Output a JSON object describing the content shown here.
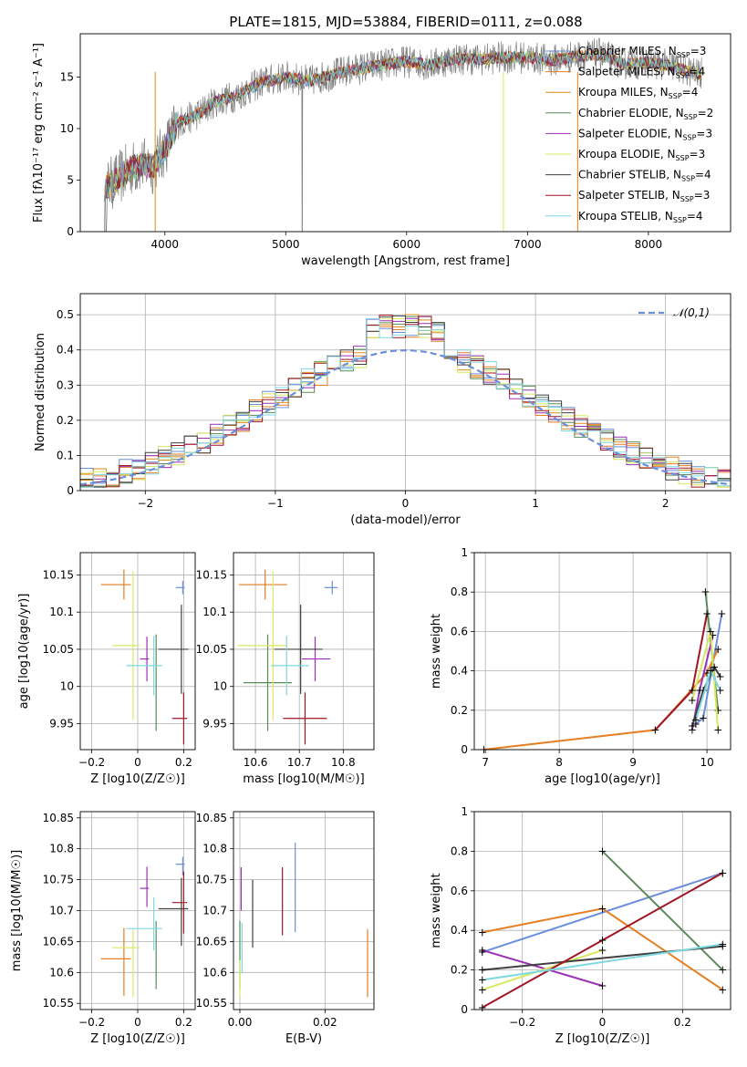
{
  "chart_data": [
    {
      "id": "spectrum",
      "type": "line",
      "title": "PLATE=1815, MJD=53884, FIBERID=0111, z=0.088",
      "xlabel": "wavelength [Angstrom, rest frame]",
      "ylabel": "Flux [f_λ 10^-17 erg cm^-2 s^-1 A^-1]",
      "xlim": [
        3300,
        8680
      ],
      "ylim": [
        0,
        19.2
      ],
      "xticks": [
        4000,
        5000,
        6000,
        7000,
        8000
      ],
      "yticks": [
        0,
        5,
        10,
        15
      ],
      "grid": false,
      "legend_position": "top-right",
      "data_envelope": {
        "x": [
          3500,
          3600,
          3700,
          3800,
          3900,
          4000,
          4100,
          4200,
          4300,
          4400,
          4600,
          4800,
          5000,
          5200,
          5400,
          5600,
          5800,
          6000,
          6200,
          6400,
          6600,
          6800,
          7000,
          7200,
          7400,
          7600,
          7800,
          8000,
          8200,
          8400
        ],
        "y": [
          4.2,
          5.0,
          6.0,
          6.5,
          6.3,
          8.0,
          10.5,
          11.0,
          11.6,
          12.5,
          13.2,
          14.5,
          15.0,
          14.6,
          15.3,
          15.8,
          16.2,
          16.5,
          16.2,
          16.8,
          16.7,
          16.9,
          16.9,
          16.6,
          17.0,
          17.2,
          16.3,
          16.4,
          16.1,
          15.3
        ]
      },
      "series": [
        {
          "name": "Chabrier MILES, N_SSP=3",
          "color": "#6a8fdc"
        },
        {
          "name": "Salpeter MILES, N_SSP=4",
          "color": "#e67e22"
        },
        {
          "name": "Kroupa MILES, N_SSP=4",
          "color": "#d98c1a"
        },
        {
          "name": "Chabrier ELODIE, N_SSP=2",
          "color": "#5a8a5a"
        },
        {
          "name": "Salpeter ELODIE, N_SSP=3",
          "color": "#9b30b5"
        },
        {
          "name": "Kroupa ELODIE, N_SSP=3",
          "color": "#d8e860"
        },
        {
          "name": "Chabrier STELIB, N_SSP=4",
          "color": "#404040"
        },
        {
          "name": "Salpeter STELIB, N_SSP=3",
          "color": "#a01525"
        },
        {
          "name": "Kroupa STELIB, N_SSP=4",
          "color": "#7dd8e0"
        }
      ]
    },
    {
      "id": "residuals",
      "type": "histogram",
      "xlabel": "(data-model)/error",
      "ylabel": "Normed distribution",
      "xlim": [
        -2.5,
        2.5
      ],
      "ylim": [
        0,
        0.56
      ],
      "xticks": [
        -2,
        -1,
        0,
        1,
        2
      ],
      "yticks": [
        0.0,
        0.1,
        0.2,
        0.3,
        0.4,
        0.5
      ],
      "grid": true,
      "legend_position": "top-right",
      "reference_curve": {
        "name": "𝒩(0,1)",
        "mu": 0,
        "sigma": 1,
        "color": "#6a8fdc"
      },
      "bin_width": 0.1
    },
    {
      "id": "age_vs_Z",
      "type": "errorbar",
      "xlabel": "Z [log10(Z/Z☉)]",
      "ylabel": "age [log10(age/yr)]",
      "xlim": [
        -0.25,
        0.25
      ],
      "ylim": [
        9.915,
        10.18
      ],
      "xticks": [
        -0.2,
        0.0,
        0.2
      ],
      "yticks": [
        9.95,
        10.0,
        10.05,
        10.1,
        10.15
      ],
      "grid": true
    },
    {
      "id": "age_vs_mass",
      "type": "errorbar",
      "xlabel": "mass [log10(M/M☉)]",
      "xlim": [
        10.55,
        10.87
      ],
      "ylim": [
        9.915,
        10.18
      ],
      "xticks": [
        10.6,
        10.7,
        10.8
      ],
      "yticks": [
        9.95,
        10.0,
        10.05,
        10.1,
        10.15
      ],
      "grid": true
    },
    {
      "id": "weight_vs_age",
      "type": "line",
      "xlabel": "age [log10(age/yr)]",
      "ylabel": "mass weight",
      "xlim": [
        6.85,
        10.32
      ],
      "ylim": [
        0,
        1.0
      ],
      "xticks": [
        7,
        8,
        9,
        10
      ],
      "yticks": [
        0.0,
        0.2,
        0.4,
        0.6,
        0.8,
        1.0
      ],
      "grid": true
    },
    {
      "id": "mass_vs_Z",
      "type": "errorbar",
      "xlabel": "Z [log10(Z/Z☉)]",
      "ylabel": "mass [log10(M/M☉)]",
      "xlim": [
        -0.25,
        0.25
      ],
      "ylim": [
        10.54,
        10.86
      ],
      "xticks": [
        -0.2,
        0.0,
        0.2
      ],
      "yticks": [
        10.55,
        10.6,
        10.65,
        10.7,
        10.75,
        10.8,
        10.85
      ],
      "grid": true
    },
    {
      "id": "mass_vs_ebv",
      "type": "errorbar",
      "xlabel": "E(B-V)",
      "xlim": [
        -0.0015,
        0.0315
      ],
      "ylim": [
        10.54,
        10.86
      ],
      "xticks": [
        0.0,
        0.02
      ],
      "yticks": [
        10.55,
        10.6,
        10.65,
        10.7,
        10.75,
        10.8,
        10.85
      ],
      "grid": true
    },
    {
      "id": "weight_vs_Z",
      "type": "line",
      "xlabel": "Z [log10(Z/Z☉)]",
      "ylabel": "mass weight",
      "xlim": [
        -0.32,
        0.32
      ],
      "ylim": [
        0,
        1.0
      ],
      "xticks": [
        -0.2,
        0.0,
        0.2
      ],
      "yticks": [
        0.0,
        0.2,
        0.4,
        0.6,
        0.8,
        1.0
      ],
      "grid": true
    }
  ],
  "fits": [
    {
      "name": "Chabrier MILES",
      "color": "#6a8fdc",
      "age": 10.133,
      "age_err": 0.009,
      "Z": 0.196,
      "Z_err": 0.03,
      "mass": 10.775,
      "mass_err": [
        0.018,
        0.012
      ],
      "ebv": 0.013,
      "ebv_mass_range": [
        10.665,
        10.81
      ],
      "ssp_age": [
        9.85,
        9.95,
        10.2
      ],
      "ssp_w": [
        0.13,
        0.16,
        0.69
      ],
      "ssp_Z": [
        -0.3,
        0.3
      ],
      "ssp_Zw": [
        0.29,
        0.69
      ]
    },
    {
      "name": "Salpeter MILES",
      "color": "#e67e22",
      "age": 10.137,
      "age_err": 0.02,
      "Z": -0.06,
      "Z_err": 0.1,
      "mass": 10.622,
      "mass_err": [
        0.06,
        0.05
      ],
      "ebv": 0.03,
      "ebv_mass_range": [
        10.56,
        10.67
      ],
      "ssp_age": [
        6.98,
        9.3,
        10.0,
        10.15
      ],
      "ssp_w": [
        0.0,
        0.1,
        0.39,
        0.51
      ],
      "ssp_Z": [
        -0.3,
        0.0,
        0.3
      ],
      "ssp_Zw": [
        0.39,
        0.51,
        0.1
      ]
    },
    {
      "name": "Kroupa MILES",
      "color": "#d98c1a"
    },
    {
      "name": "Chabrier ELODIE",
      "color": "#5a8a5a",
      "age": 10.005,
      "age_err": 0.065,
      "Z": 0.08,
      "Z_err": 0.0,
      "mass": 10.628,
      "mass_err": [
        0.055,
        0.055
      ],
      "ebv": 0.0,
      "ssp_age": [
        9.98,
        10.15
      ],
      "ssp_w": [
        0.8,
        0.2
      ],
      "ssp_Z": [
        0.0,
        0.3
      ],
      "ssp_Zw": [
        0.8,
        0.2
      ]
    },
    {
      "name": "Salpeter ELODIE",
      "color": "#9b30b5",
      "age": 10.037,
      "age_err": 0.03,
      "Z": 0.04,
      "Z_err": 0.03,
      "mass": 10.736,
      "mass_err": [
        0.03,
        0.035
      ],
      "ebv": 0.0003,
      "ebv_mass_range": [
        10.7,
        10.77
      ],
      "ssp_age": [
        9.8,
        9.9,
        10.08
      ],
      "ssp_w": [
        0.1,
        0.3,
        0.58
      ],
      "ssp_Z": [
        -0.3,
        0.0
      ],
      "ssp_Zw": [
        0.3,
        0.12
      ]
    },
    {
      "name": "Kroupa ELODIE",
      "color": "#d8e860",
      "age": 10.055,
      "age_err": 0.1,
      "Z": -0.02,
      "Z_err": 0.09,
      "mass": 10.64,
      "mass_err": [
        0.08,
        0.03
      ],
      "ebv": 0.0,
      "ebv_mass_range": [
        10.56,
        10.62
      ],
      "ssp_age": [
        9.8,
        10.05,
        10.15
      ],
      "ssp_w": [
        0.25,
        0.6,
        0.1
      ],
      "ssp_Z": [
        -0.3,
        0.0
      ],
      "ssp_Zw": [
        0.1,
        0.3
      ]
    },
    {
      "name": "Chabrier STELIB",
      "color": "#404040",
      "age": 10.05,
      "age_err": 0.06,
      "Z": 0.19,
      "Z_err": 0.1,
      "mass": 10.703,
      "mass_err": [
        0.06,
        0.05
      ],
      "ebv": 0.003,
      "ebv_mass_range": [
        10.64,
        10.75
      ],
      "ssp_age": [
        9.8,
        9.95,
        10.1,
        10.18
      ],
      "ssp_w": [
        0.12,
        0.3,
        0.42,
        0.37
      ],
      "ssp_Z": [
        -0.3,
        0.3
      ],
      "ssp_Zw": [
        0.2,
        0.32
      ]
    },
    {
      "name": "Salpeter STELIB",
      "color": "#a01525",
      "age": 9.957,
      "age_err": 0.035,
      "Z": 0.2,
      "Z_err": 0.05,
      "mass": 10.713,
      "mass_err": [
        0.05,
        0.05
      ],
      "ebv": 0.01,
      "ebv_mass_range": [
        10.66,
        10.77
      ],
      "ssp_age": [
        9.3,
        9.8,
        10.0
      ],
      "ssp_w": [
        0.1,
        0.3,
        0.69
      ],
      "ssp_Z": [
        -0.3,
        0.0,
        0.3
      ],
      "ssp_Zw": [
        0.01,
        0.35,
        0.69
      ]
    },
    {
      "name": "Kroupa STELIB",
      "color": "#7dd8e0",
      "age": 10.028,
      "age_err": 0.04,
      "Z": 0.07,
      "Z_err": 0.12,
      "mass": 10.671,
      "mass_err": [
        0.035,
        0.05
      ],
      "ebv": 0.0005,
      "ebv_mass_range": [
        10.6,
        10.68
      ],
      "ssp_age": [
        9.85,
        10.05,
        10.18
      ],
      "ssp_w": [
        0.15,
        0.4,
        0.3
      ],
      "ssp_Z": [
        -0.3,
        0.3
      ],
      "ssp_Zw": [
        0.15,
        0.33
      ]
    }
  ]
}
